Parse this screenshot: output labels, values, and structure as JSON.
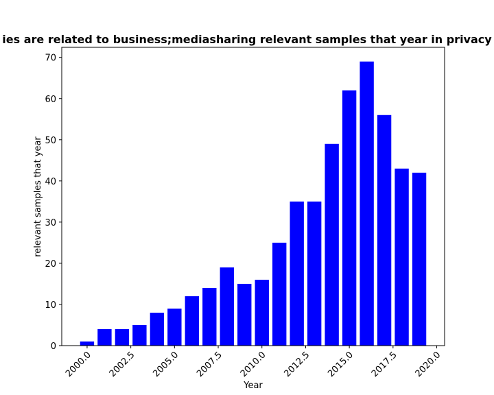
{
  "chart_data": {
    "type": "bar",
    "title": "ies are related to business;mediasharing relevant samples that year in privacy",
    "xlabel": "Year",
    "ylabel": "relevant samples that year",
    "x": [
      2000,
      2001,
      2002,
      2003,
      2004,
      2005,
      2006,
      2007,
      2008,
      2009,
      2010,
      2011,
      2012,
      2013,
      2014,
      2015,
      2016,
      2017,
      2018,
      2019
    ],
    "values": [
      1,
      4,
      4,
      5,
      8,
      9,
      12,
      14,
      19,
      15,
      16,
      25,
      35,
      35,
      49,
      62,
      69,
      56,
      43,
      42
    ],
    "xlim": [
      1998.55,
      2020.45
    ],
    "ylim": [
      0,
      72.45
    ],
    "xticks": [
      2000.0,
      2002.5,
      2005.0,
      2007.5,
      2010.0,
      2012.5,
      2015.0,
      2017.5,
      2020.0
    ],
    "xtick_labels": [
      "2000.0",
      "2002.5",
      "2005.0",
      "2007.5",
      "2010.0",
      "2012.5",
      "2015.0",
      "2017.5",
      "2020.0"
    ],
    "yticks": [
      0,
      10,
      20,
      30,
      40,
      50,
      60,
      70
    ],
    "ytick_labels": [
      "0",
      "10",
      "20",
      "30",
      "40",
      "50",
      "60",
      "70"
    ],
    "bar_color": "#0000ff",
    "grid": false,
    "legend": "none"
  }
}
